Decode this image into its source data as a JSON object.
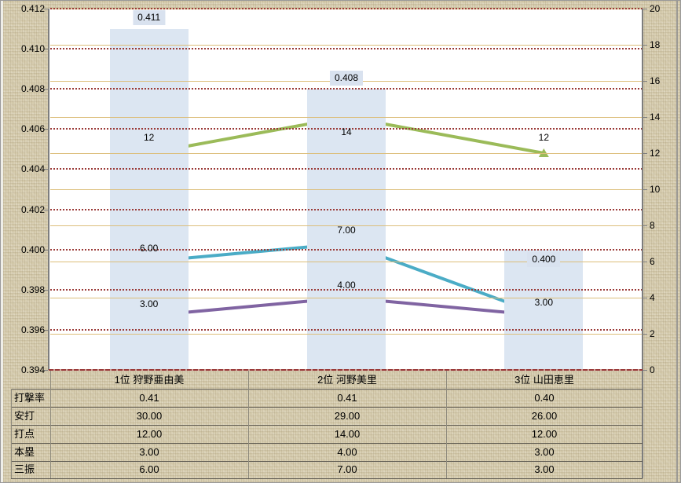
{
  "chart_data": {
    "type": "combo",
    "categories": [
      "1位 狩野亜由美",
      "2位 河野美里",
      "3位 山田恵里"
    ],
    "left_axis": {
      "range": [
        0.394,
        0.412
      ],
      "step": 0.002,
      "ticks": [
        "0.412",
        "0.410",
        "0.408",
        "0.406",
        "0.404",
        "0.402",
        "0.400",
        "0.398",
        "0.396",
        "0.394"
      ]
    },
    "right_axis": {
      "range": [
        0,
        20
      ],
      "step": 2,
      "ticks": [
        "20",
        "18",
        "16",
        "14",
        "12",
        "10",
        "8",
        "6",
        "4",
        "2",
        "0"
      ]
    },
    "series": [
      {
        "name": "打撃率",
        "type": "bar",
        "axis": "left",
        "values": [
          0.411,
          0.408,
          0.4
        ],
        "labels": [
          "0.411",
          "0.408",
          "0.400"
        ],
        "color": "#dce6f2",
        "label_bg": "#d9e2ef"
      },
      {
        "name": "安打",
        "type": "line",
        "axis": "right",
        "values": [
          30,
          29,
          26
        ],
        "plotted": false
      },
      {
        "name": "打点",
        "type": "line",
        "axis": "right",
        "values": [
          12,
          14,
          12
        ],
        "labels": [
          "12",
          "14",
          "12"
        ],
        "color": "#9bbb59",
        "marker": "triangle"
      },
      {
        "name": "三振",
        "type": "line",
        "axis": "right",
        "values": [
          6,
          7,
          3
        ],
        "labels": [
          "6.00",
          "7.00",
          null
        ],
        "color": "#4bacc6",
        "marker": "asterisk"
      },
      {
        "name": "本塁",
        "type": "line",
        "axis": "right",
        "values": [
          3,
          4,
          3
        ],
        "labels": [
          "3.00",
          "4.00",
          "3.00"
        ],
        "color": "#8064a2",
        "marker": "x"
      }
    ],
    "data_table": {
      "row_headers": [
        "打撃率",
        "安打",
        "打点",
        "本塁",
        "三振"
      ],
      "rows": [
        [
          "0.41",
          "0.41",
          "0.40"
        ],
        [
          "30.00",
          "29.00",
          "26.00"
        ],
        [
          "12.00",
          "14.00",
          "12.00"
        ],
        [
          "3.00",
          "4.00",
          "3.00"
        ],
        [
          "6.00",
          "7.00",
          "3.00"
        ]
      ]
    },
    "colors": {
      "page_bg": "#d6ccae",
      "plot_bg": "#ffffff",
      "grid_solid": "#dcbe7a",
      "grid_dotted": "#9b3a38",
      "axis_line": "#7d7d7d",
      "category_axis": "#983737",
      "bar_fill": "#dce6f2",
      "line_green": "#9bbb59",
      "line_teal": "#4bacc6",
      "line_purple": "#8064a2"
    },
    "grid": true,
    "legend_position": "none"
  }
}
